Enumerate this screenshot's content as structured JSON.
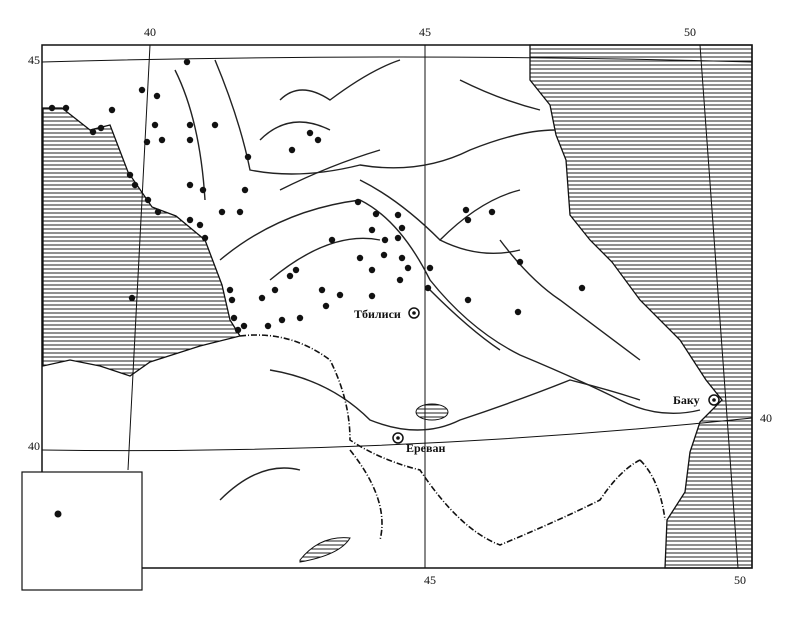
{
  "graticule": {
    "top": [
      "40",
      "45",
      "50"
    ],
    "left": [
      "45",
      "40"
    ],
    "right": [
      "40"
    ],
    "bottom": [
      "45",
      "50"
    ]
  },
  "cities": [
    "Тбилиси",
    "Ереван",
    "Баку"
  ]
}
